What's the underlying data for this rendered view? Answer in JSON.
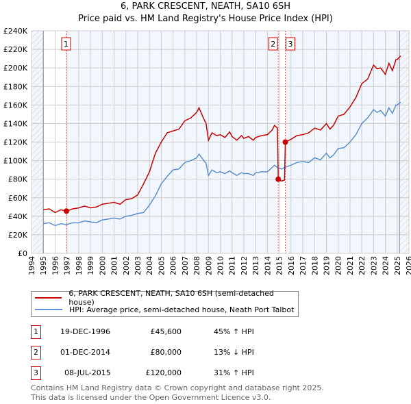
{
  "chart_data": {
    "type": "line",
    "title": "6, PARK CRESCENT, NEATH, SA10 6SH",
    "subtitle": "Price paid vs. HM Land Registry's House Price Index (HPI)",
    "xlim": [
      1994,
      2026
    ],
    "ylim": [
      0,
      240000
    ],
    "x_ticks": [
      "1994",
      "1995",
      "1996",
      "1997",
      "1998",
      "1999",
      "2000",
      "2001",
      "2002",
      "2003",
      "2004",
      "2005",
      "2006",
      "2007",
      "2008",
      "2009",
      "2010",
      "2011",
      "2012",
      "2013",
      "2014",
      "2015",
      "2016",
      "2017",
      "2018",
      "2019",
      "2020",
      "2021",
      "2022",
      "2023",
      "2024",
      "2025",
      "2026"
    ],
    "y_ticks": [
      {
        "v": 0,
        "label": "£0"
      },
      {
        "v": 20000,
        "label": "£20K"
      },
      {
        "v": 40000,
        "label": "£40K"
      },
      {
        "v": 60000,
        "label": "£60K"
      },
      {
        "v": 80000,
        "label": "£80K"
      },
      {
        "v": 100000,
        "label": "£100K"
      },
      {
        "v": 120000,
        "label": "£120K"
      },
      {
        "v": 140000,
        "label": "£140K"
      },
      {
        "v": 160000,
        "label": "£160K"
      },
      {
        "v": 180000,
        "label": "£180K"
      },
      {
        "v": 200000,
        "label": "£200K"
      },
      {
        "v": 220000,
        "label": "£220K"
      },
      {
        "v": 240000,
        "label": "£240K"
      }
    ],
    "grid": true,
    "hatched_ranges": [
      [
        1994,
        1995
      ],
      [
        2025.2,
        2026
      ]
    ],
    "series": [
      {
        "name": "6, PARK CRESCENT, NEATH, SA10 6SH (semi-detached house)",
        "color": "#cc0000",
        "x": [
          1995,
          1995.5,
          1996,
          1996.5,
          1996.96,
          1997.5,
          1998,
          1998.5,
          1999,
          1999.5,
          2000,
          2000.5,
          2001,
          2001.5,
          2002,
          2002.5,
          2003,
          2003.5,
          2004,
          2004.5,
          2005,
          2005.5,
          2006,
          2006.5,
          2007,
          2007.5,
          2008,
          2008.2,
          2008.5,
          2008.8,
          2009,
          2009.3,
          2009.7,
          2010,
          2010.4,
          2010.8,
          2011,
          2011.4,
          2011.8,
          2012,
          2012.4,
          2012.8,
          2013,
          2013.5,
          2014,
          2014.4,
          2014.6,
          2014.85,
          2014.92,
          2015.2,
          2015.45,
          2015.52,
          2016,
          2016.5,
          2017,
          2017.5,
          2018,
          2018.5,
          2019,
          2019.3,
          2019.6,
          2020,
          2020.5,
          2021,
          2021.5,
          2022,
          2022.5,
          2023,
          2023.3,
          2023.6,
          2024,
          2024.3,
          2024.6,
          2024.9,
          2025,
          2025.3
        ],
        "y": [
          47000,
          48000,
          44000,
          47000,
          45600,
          48000,
          49000,
          51000,
          49000,
          50000,
          53000,
          54000,
          55000,
          53000,
          58000,
          59000,
          63000,
          75000,
          88000,
          108000,
          120000,
          130000,
          132000,
          134000,
          143000,
          146000,
          152000,
          157000,
          148000,
          140000,
          122000,
          130000,
          127000,
          128000,
          125000,
          131000,
          126000,
          122000,
          127000,
          124000,
          126000,
          122000,
          125000,
          127000,
          128000,
          133000,
          138000,
          135000,
          80000,
          78000,
          79000,
          120000,
          123000,
          127000,
          128000,
          130000,
          135000,
          133000,
          140000,
          134000,
          138000,
          148000,
          150000,
          158000,
          168000,
          183000,
          188000,
          203000,
          199000,
          200000,
          193000,
          205000,
          197000,
          209000,
          209000,
          213000
        ]
      },
      {
        "name": "HPI: Average price, semi-detached house, Neath Port Talbot",
        "color": "#5b8fd0",
        "x": [
          1995,
          1995.5,
          1996,
          1996.5,
          1996.96,
          1997.5,
          1998,
          1998.5,
          1999,
          1999.5,
          2000,
          2000.5,
          2001,
          2001.5,
          2002,
          2002.5,
          2003,
          2003.5,
          2004,
          2004.5,
          2005,
          2005.5,
          2006,
          2006.5,
          2007,
          2007.5,
          2008,
          2008.2,
          2008.5,
          2008.8,
          2009,
          2009.3,
          2009.7,
          2010,
          2010.4,
          2010.8,
          2011,
          2011.4,
          2011.8,
          2012,
          2012.4,
          2012.8,
          2013,
          2013.5,
          2014,
          2014.6,
          2014.92,
          2015.2,
          2015.52,
          2016,
          2016.5,
          2017,
          2017.5,
          2018,
          2018.5,
          2019,
          2019.3,
          2019.6,
          2020,
          2020.5,
          2021,
          2021.5,
          2022,
          2022.5,
          2023,
          2023.3,
          2023.6,
          2024,
          2024.3,
          2024.6,
          2024.9,
          2025,
          2025.3
        ],
        "y": [
          32000,
          33000,
          30000,
          32000,
          31000,
          33000,
          33000,
          35000,
          34000,
          33000,
          36000,
          37000,
          38000,
          37000,
          40000,
          41000,
          43000,
          44000,
          52000,
          62000,
          75000,
          83000,
          90000,
          91000,
          98000,
          100000,
          103000,
          107000,
          102000,
          97000,
          84000,
          90000,
          87000,
          88000,
          86000,
          89000,
          87000,
          84000,
          87000,
          86000,
          86000,
          84000,
          87000,
          88000,
          88000,
          95000,
          92000,
          91000,
          93000,
          95000,
          98000,
          99000,
          98000,
          103000,
          101000,
          108000,
          103000,
          106000,
          113000,
          114000,
          120000,
          128000,
          140000,
          146000,
          155000,
          152000,
          154000,
          148000,
          157000,
          151000,
          160000,
          160000,
          163000
        ]
      }
    ],
    "sales": [
      {
        "id": "1",
        "x": 1996.96,
        "price": 45600,
        "date": "19-DEC-1996",
        "price_label": "£45,600",
        "hpi": "45% ↑ HPI"
      },
      {
        "id": "2",
        "x": 2014.92,
        "price": 80000,
        "date": "01-DEC-2014",
        "price_label": "£80,000",
        "hpi": "13% ↓ HPI"
      },
      {
        "id": "3",
        "x": 2015.52,
        "price": 120000,
        "date": "08-JUL-2015",
        "price_label": "£120,000",
        "hpi": "31% ↑ HPI"
      }
    ]
  },
  "footer": {
    "line1": "Contains HM Land Registry data © Crown copyright and database right 2025.",
    "line2": "This data is licensed under the Open Government Licence v3.0."
  }
}
